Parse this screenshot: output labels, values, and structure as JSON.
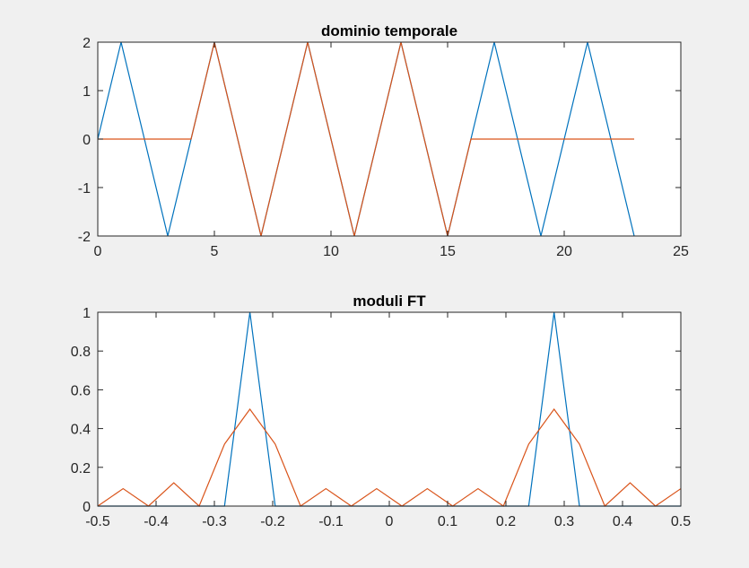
{
  "chart_data": [
    {
      "type": "line",
      "title": "dominio temporale",
      "xlabel": "",
      "ylabel": "",
      "xlim": [
        0,
        25
      ],
      "ylim": [
        -2,
        2
      ],
      "xticks": [
        0,
        5,
        10,
        15,
        20,
        25
      ],
      "yticks": [
        -2,
        -1,
        0,
        1,
        2
      ],
      "grid": false,
      "legend": "none",
      "series": [
        {
          "color": "#0072BD",
          "x": [
            0,
            1,
            3,
            5,
            7,
            9,
            11,
            13,
            15,
            17,
            19,
            21,
            23
          ],
          "y": [
            0,
            2,
            -2,
            2,
            -2,
            2,
            -2,
            2,
            -2,
            2,
            -2,
            2,
            -2
          ]
        },
        {
          "color": "#D95319",
          "x": [
            0,
            4,
            5,
            7,
            9,
            11,
            13,
            15,
            16,
            23
          ],
          "y": [
            0,
            0,
            2,
            -2,
            2,
            -2,
            2,
            -2,
            0,
            0
          ]
        }
      ]
    },
    {
      "type": "line",
      "title": "moduli FT",
      "xlabel": "",
      "ylabel": "",
      "xlim": [
        -0.5,
        0.5
      ],
      "ylim": [
        0,
        1
      ],
      "xticks": [
        -0.5,
        -0.4,
        -0.3,
        -0.2,
        -0.1,
        0,
        0.1,
        0.2,
        0.3,
        0.4,
        0.5
      ],
      "yticks": [
        0,
        0.2,
        0.4,
        0.6,
        0.8,
        1
      ],
      "grid": false,
      "legend": "none",
      "series": [
        {
          "color": "#0072BD",
          "x": [
            -0.5,
            -0.2826,
            -0.2391,
            -0.1957,
            0.2391,
            0.2826,
            0.3261,
            0.5
          ],
          "y": [
            0,
            0,
            1,
            0,
            0,
            1,
            0,
            0
          ]
        },
        {
          "color": "#D95319",
          "x": [
            -0.5,
            -0.4565,
            -0.413,
            -0.3696,
            -0.3261,
            -0.2826,
            -0.2391,
            -0.1957,
            -0.1522,
            -0.1087,
            -0.0652,
            -0.0217,
            0.0217,
            0.0652,
            0.1087,
            0.1522,
            0.1957,
            0.2391,
            0.2826,
            0.3261,
            0.3696,
            0.413,
            0.4565,
            0.5
          ],
          "y": [
            0,
            0.09,
            0,
            0.12,
            0,
            0.32,
            0.5,
            0.32,
            0,
            0.09,
            0,
            0.09,
            0,
            0.09,
            0,
            0.09,
            0,
            0.32,
            0.5,
            0.32,
            0,
            0.12,
            0,
            0.09
          ]
        }
      ]
    }
  ]
}
